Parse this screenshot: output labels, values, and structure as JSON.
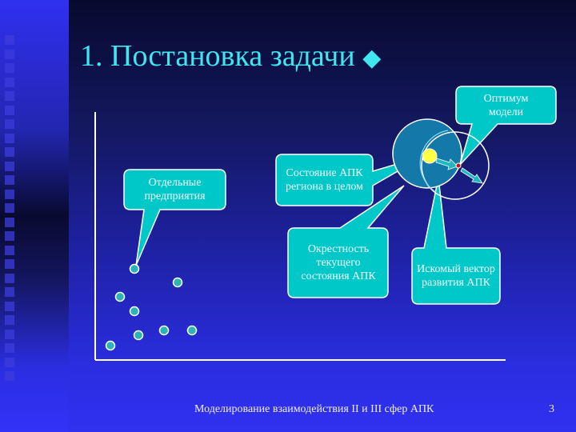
{
  "slide": {
    "title": "1. Постановка задачи",
    "title_bullet_icon": "diamond-icon",
    "footer": "Моделирование взаимодействия II и III сфер АПК",
    "page_number": "3"
  },
  "callouts": {
    "enterprises": "Отдельные предприятия",
    "region_state": "Состояние АПК региона в целом",
    "neighborhood": "Окрестность текущего состояния АПК",
    "vector": "Искомый вектор развития АПК",
    "optimum": "Оптимум модели"
  },
  "colors": {
    "title": "#3fe6f0",
    "callout_fill": "#00c8c8",
    "current_circle": "#1478a8",
    "current_state": "#ffff44",
    "optimum_point": "#c01818",
    "enterprise_dots": "#2ab4b8"
  }
}
